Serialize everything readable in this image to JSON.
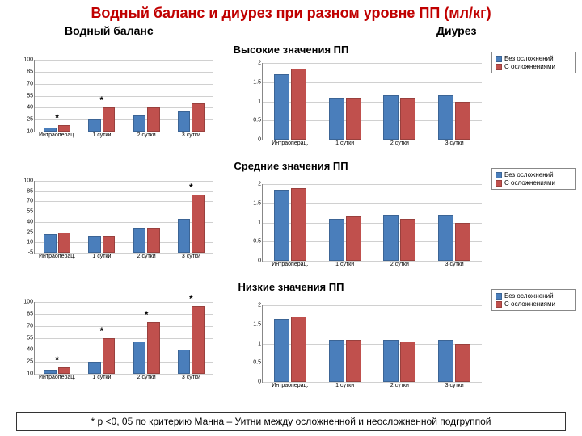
{
  "title": "Водный баланс и диурез при разном уровне ПП (мл/кг)",
  "colHeaders": {
    "left": "Водный баланс",
    "right": "Диурез"
  },
  "rowHeaders": [
    "Высокие значения ПП",
    "Средние значения ПП",
    "Низкие значения ПП"
  ],
  "legend": {
    "a": "Без осложнений",
    "b": "С осложнениями"
  },
  "colors": {
    "a": "#4a7ebb",
    "b": "#c0504d",
    "title": "#c00000"
  },
  "categories": [
    "Интраоперац.",
    "1 сутки",
    "2 сутки",
    "3 сутки"
  ],
  "leftCharts": [
    {
      "yticks": [
        10,
        25,
        40,
        55,
        70,
        85,
        100
      ],
      "ymin": 10,
      "ymax": 100,
      "a": [
        15,
        25,
        30,
        35
      ],
      "b": [
        18,
        40,
        40,
        45
      ],
      "stars": [
        1,
        2
      ]
    },
    {
      "yticks": [
        -5,
        10,
        25,
        40,
        55,
        70,
        85,
        100
      ],
      "ymin": -5,
      "ymax": 100,
      "a": [
        22,
        20,
        30,
        45
      ],
      "b": [
        25,
        20,
        30,
        80
      ],
      "stars": [
        4
      ]
    },
    {
      "yticks": [
        10,
        25,
        40,
        55,
        70,
        85,
        100
      ],
      "ymin": 10,
      "ymax": 100,
      "a": [
        15,
        25,
        50,
        40
      ],
      "b": [
        18,
        55,
        75,
        95
      ],
      "stars": [
        1,
        2,
        3,
        4
      ]
    }
  ],
  "rightCharts": [
    {
      "yticks": [
        0,
        0.5,
        1,
        1.5,
        2
      ],
      "ymin": 0,
      "ymax": 2,
      "a": [
        1.7,
        1.1,
        1.15,
        1.15
      ],
      "b": [
        1.85,
        1.1,
        1.1,
        1.0
      ],
      "stars": []
    },
    {
      "yticks": [
        0,
        0.5,
        1,
        1.5,
        2
      ],
      "ymin": 0,
      "ymax": 2,
      "a": [
        1.85,
        1.1,
        1.2,
        1.2
      ],
      "b": [
        1.9,
        1.15,
        1.1,
        1.0
      ],
      "stars": []
    },
    {
      "yticks": [
        0,
        0.5,
        1,
        1.5,
        2
      ],
      "ymin": 0,
      "ymax": 2,
      "a": [
        1.65,
        1.1,
        1.1,
        1.1
      ],
      "b": [
        1.7,
        1.1,
        1.05,
        1.0
      ],
      "stars": []
    }
  ],
  "footnote": "* p <0, 05 по критерию Манна – Уитни между осложненной и неосложненной подгруппой"
}
